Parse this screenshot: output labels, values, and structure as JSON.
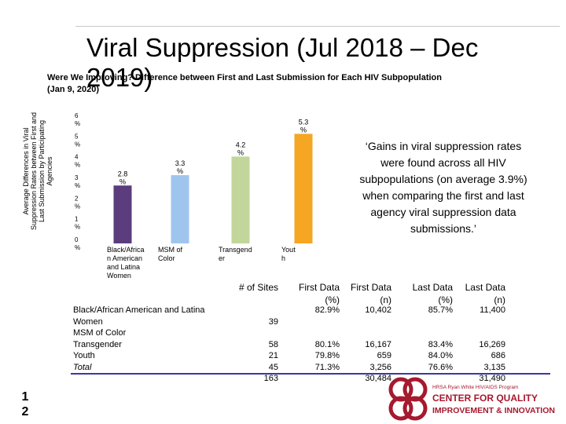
{
  "title": {
    "line1": "Viral Suppression (Jul 2018 – Dec",
    "line2": "2019)"
  },
  "subtitle": {
    "line1": "Were We Improving? Difference between First and Last Submission for Each HIV Subpopulation",
    "line2": "(Jan 9, 2020)"
  },
  "quote": "‘Gains in viral suppression rates were found across all HIV subpopulations (on average 3.9%) when comparing the first and last agency viral suppression data submissions.’",
  "page_number": {
    "line1": "1",
    "line2": "2"
  },
  "logo": {
    "line1": "HRSA Ryan White HIV/AIDS Program",
    "line2": "CENTER FOR QUALITY",
    "line3": "IMPROVEMENT & INNOVATION"
  },
  "chart_data": {
    "type": "bar",
    "ylabel": "Average Differences in Viral Suppression Rates between First and Last Submission by Participating Agencies",
    "ylim": [
      0,
      6
    ],
    "yticks": [
      "0 %",
      "1 %",
      "2 %",
      "3 %",
      "4 %",
      "5 %",
      "6 %"
    ],
    "categories": [
      "Black/African American and Latina Women",
      "MSM of Color",
      "Transgender",
      "Youth"
    ],
    "category_labels": [
      "Black/Africa n American and Latina Women",
      "MSM of Color",
      "Transgend er",
      "Yout h"
    ],
    "values": [
      2.8,
      3.3,
      4.2,
      5.3
    ],
    "data_labels": [
      "2.8 %",
      "3.3 %",
      "4.2 %",
      "5.3 %"
    ],
    "colors": [
      "#5b3d7e",
      "#9fc5ee",
      "#c2d69b",
      "#f5a623"
    ],
    "grid": false,
    "legend": "none"
  },
  "table": {
    "headers": [
      "# of Sites",
      "First Data (%)",
      "First Data (n)",
      "Last Data (%)",
      "Last Data (n)"
    ],
    "rows": [
      {
        "label": "Black/African American and Latina Women",
        "sites": "39",
        "first_pct": "82.9%",
        "first_n": "10,402",
        "last_pct": "85.7%",
        "last_n": "11,400"
      },
      {
        "label": "MSM of Color",
        "sites": "58",
        "first_pct": "80.1%",
        "first_n": "16,167",
        "last_pct": "83.4%",
        "last_n": "16,269"
      },
      {
        "label": "Transgender",
        "sites": "21",
        "first_pct": "79.8%",
        "first_n": "659",
        "last_pct": "84.0%",
        "last_n": "686"
      },
      {
        "label": "Youth",
        "sites": "45",
        "first_pct": "71.3%",
        "first_n": "3,256",
        "last_pct": "76.6%",
        "last_n": "3,135"
      },
      {
        "label": "Total",
        "sites": "163",
        "first_pct": "",
        "first_n": "30,484",
        "last_pct": "",
        "last_n": "31,490"
      }
    ]
  }
}
